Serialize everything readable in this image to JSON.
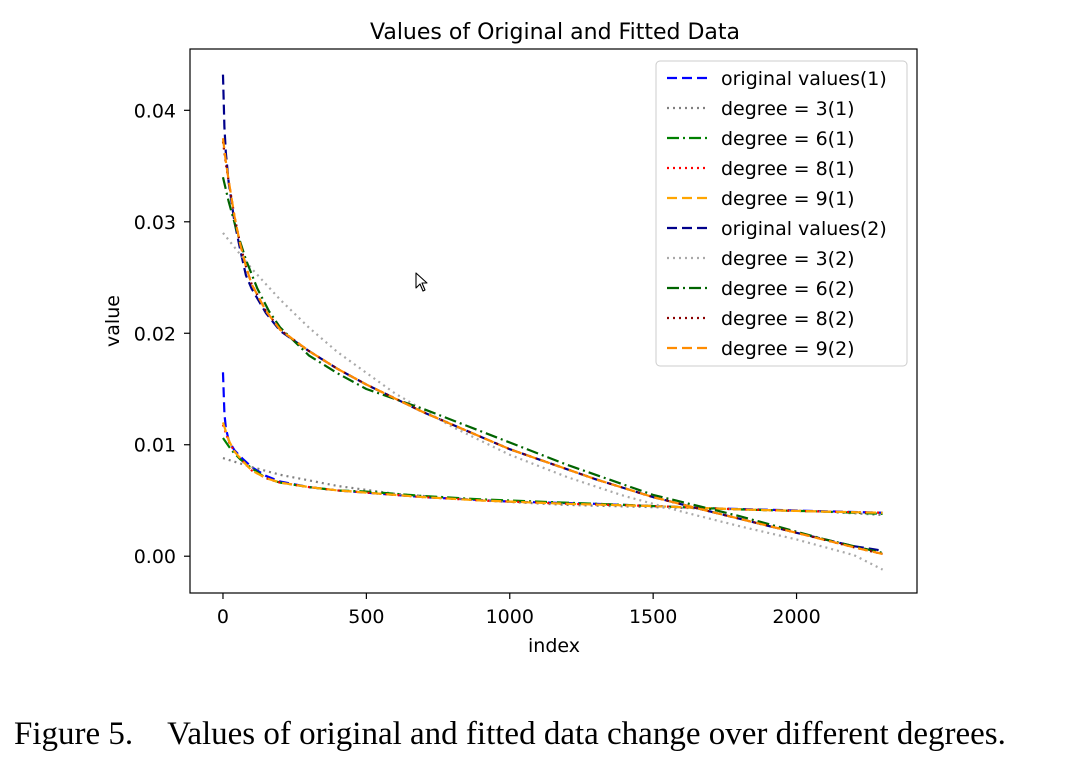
{
  "chart_data": {
    "type": "line",
    "title": "Values of Original and Fitted Data",
    "xlabel": "index",
    "ylabel": "value",
    "xlim": [
      -115,
      2420
    ],
    "ylim": [
      -0.0033,
      0.0455
    ],
    "xticks": [
      0,
      500,
      1000,
      1500,
      2000
    ],
    "xtick_labels": [
      "0",
      "500",
      "1000",
      "1500",
      "2000"
    ],
    "yticks": [
      0.0,
      0.01,
      0.02,
      0.03,
      0.04
    ],
    "ytick_labels": [
      "0.00",
      "0.01",
      "0.02",
      "0.03",
      "0.04"
    ],
    "grid": false,
    "legend_position": "top-right",
    "series": [
      {
        "name": "original values(1)",
        "color": "#0000ff",
        "dash": "dashed",
        "x": [
          0,
          5,
          10,
          20,
          40,
          70,
          100,
          150,
          200,
          300,
          400,
          500,
          700,
          1000,
          1300,
          1500,
          1700,
          2000,
          2300
        ],
        "y": [
          0.0165,
          0.0128,
          0.0115,
          0.0104,
          0.0095,
          0.0087,
          0.008,
          0.0072,
          0.0067,
          0.0062,
          0.0059,
          0.0057,
          0.0053,
          0.0049,
          0.0047,
          0.0045,
          0.0043,
          0.0041,
          0.0039
        ]
      },
      {
        "name": "degree = 3(1)",
        "color": "#808080",
        "dash": "dotted",
        "x": [
          0,
          100,
          200,
          400,
          600,
          900,
          1200,
          1500,
          1800,
          2100,
          2300
        ],
        "y": [
          0.0088,
          0.008,
          0.0073,
          0.0063,
          0.0056,
          0.005,
          0.0046,
          0.0044,
          0.0042,
          0.004,
          0.0037
        ]
      },
      {
        "name": "degree = 6(1)",
        "color": "#008000",
        "dash": "dashdot",
        "x": [
          0,
          30,
          60,
          100,
          150,
          200,
          300,
          400,
          500,
          700,
          900,
          1200,
          1500,
          1800,
          2100,
          2300
        ],
        "y": [
          0.0106,
          0.0095,
          0.0087,
          0.0079,
          0.007,
          0.0066,
          0.0062,
          0.0059,
          0.0058,
          0.0054,
          0.0051,
          0.0048,
          0.0045,
          0.0042,
          0.004,
          0.0038
        ]
      },
      {
        "name": "degree = 8(1)",
        "color": "#ff0000",
        "dash": "dotted",
        "x": [
          0,
          20,
          40,
          70,
          100,
          150,
          200,
          300,
          400,
          500,
          700,
          900,
          1200,
          1500,
          1800,
          2100,
          2300
        ],
        "y": [
          0.0118,
          0.0103,
          0.0094,
          0.0085,
          0.0077,
          0.007,
          0.0066,
          0.0062,
          0.0059,
          0.0057,
          0.0053,
          0.005,
          0.0047,
          0.0045,
          0.0042,
          0.004,
          0.0039
        ]
      },
      {
        "name": "degree = 9(1)",
        "color": "#ffa500",
        "dash": "dashed",
        "x": [
          0,
          20,
          40,
          70,
          100,
          150,
          200,
          300,
          400,
          500,
          700,
          900,
          1200,
          1500,
          1800,
          2100,
          2300
        ],
        "y": [
          0.012,
          0.0104,
          0.0094,
          0.0085,
          0.0077,
          0.007,
          0.0066,
          0.0062,
          0.0059,
          0.0057,
          0.0053,
          0.005,
          0.0047,
          0.0045,
          0.0042,
          0.004,
          0.0039
        ]
      },
      {
        "name": "original values(2)",
        "color": "#00008b",
        "dash": "dashed",
        "x": [
          0,
          5,
          10,
          20,
          40,
          60,
          80,
          100,
          150,
          200,
          300,
          400,
          500,
          700,
          1000,
          1300,
          1500,
          1700,
          2000,
          2200,
          2300
        ],
        "y": [
          0.0432,
          0.0385,
          0.0362,
          0.0335,
          0.03,
          0.0275,
          0.0252,
          0.024,
          0.0218,
          0.0202,
          0.0184,
          0.0168,
          0.0154,
          0.0129,
          0.0096,
          0.0069,
          0.0053,
          0.004,
          0.0021,
          0.0009,
          0.0005
        ]
      },
      {
        "name": "degree = 3(2)",
        "color": "#a9a9a9",
        "dash": "dotted",
        "x": [
          0,
          100,
          200,
          300,
          400,
          600,
          800,
          1000,
          1200,
          1400,
          1600,
          1800,
          2000,
          2200,
          2300
        ],
        "y": [
          0.029,
          0.0258,
          0.023,
          0.0205,
          0.0183,
          0.0146,
          0.0116,
          0.0091,
          0.0071,
          0.0054,
          0.004,
          0.0027,
          0.0015,
          0.0001,
          -0.0012
        ]
      },
      {
        "name": "degree = 6(2)",
        "color": "#006400",
        "dash": "dashdot",
        "x": [
          0,
          20,
          50,
          80,
          120,
          160,
          200,
          300,
          400,
          500,
          700,
          900,
          1200,
          1500,
          1800,
          2100,
          2300
        ],
        "y": [
          0.034,
          0.0318,
          0.029,
          0.0266,
          0.024,
          0.022,
          0.0205,
          0.018,
          0.0164,
          0.015,
          0.0132,
          0.0112,
          0.0082,
          0.0055,
          0.0036,
          0.0015,
          0.0003
        ]
      },
      {
        "name": "degree = 8(2)",
        "color": "#8b0000",
        "dash": "dotted",
        "x": [
          0,
          10,
          20,
          40,
          60,
          80,
          100,
          150,
          200,
          300,
          400,
          500,
          700,
          1000,
          1300,
          1500,
          1700,
          2000,
          2200,
          2300
        ],
        "y": [
          0.0372,
          0.0352,
          0.0336,
          0.0305,
          0.028,
          0.026,
          0.0244,
          0.022,
          0.0203,
          0.0184,
          0.0168,
          0.0154,
          0.0129,
          0.0096,
          0.0069,
          0.0053,
          0.004,
          0.0021,
          0.0008,
          0.0002
        ]
      },
      {
        "name": "degree = 9(2)",
        "color": "#ff8c00",
        "dash": "dashed",
        "x": [
          0,
          10,
          20,
          40,
          60,
          80,
          100,
          150,
          200,
          300,
          400,
          500,
          700,
          1000,
          1300,
          1500,
          1700,
          2000,
          2200,
          2300
        ],
        "y": [
          0.0375,
          0.0354,
          0.0337,
          0.0305,
          0.028,
          0.026,
          0.0244,
          0.022,
          0.0203,
          0.0184,
          0.0168,
          0.0154,
          0.0129,
          0.0096,
          0.0069,
          0.0053,
          0.004,
          0.0021,
          0.0008,
          0.0002
        ]
      }
    ]
  },
  "caption": {
    "label": "Figure 5.",
    "text": "Values of original and fitted data change over different degrees."
  }
}
